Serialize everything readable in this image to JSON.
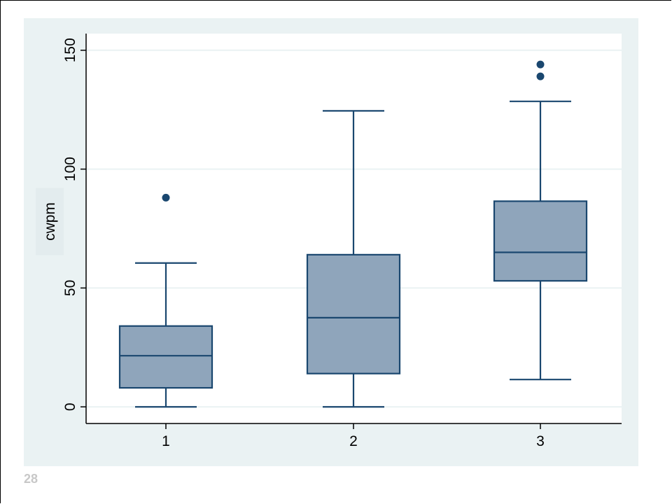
{
  "page_number": "28",
  "colors": {
    "panel_background": "#eaf2f3",
    "plot_background": "#ffffff",
    "box_fill": "#8fa5bb",
    "box_stroke": "#1a476f",
    "outlier": "#1a476f",
    "grid": "#eaf2f3"
  },
  "chart_data": {
    "type": "box",
    "ylabel": "cwpm",
    "xlabel": "",
    "ylim": [
      -7,
      157
    ],
    "yticks": [
      "0",
      "50",
      "100",
      "150"
    ],
    "grid": true,
    "categories": [
      "1",
      "2",
      "3"
    ],
    "boxes": [
      {
        "category": "1",
        "whisker_low": 0,
        "q1": 8,
        "median": 21.5,
        "q3": 34,
        "whisker_high": 60.5,
        "outliers": [
          88
        ]
      },
      {
        "category": "2",
        "whisker_low": 0,
        "q1": 14,
        "median": 37.5,
        "q3": 64,
        "whisker_high": 124.5,
        "outliers": []
      },
      {
        "category": "3",
        "whisker_low": 11.5,
        "q1": 53,
        "median": 65,
        "q3": 86.5,
        "whisker_high": 128.5,
        "outliers": [
          139,
          144
        ]
      }
    ]
  }
}
